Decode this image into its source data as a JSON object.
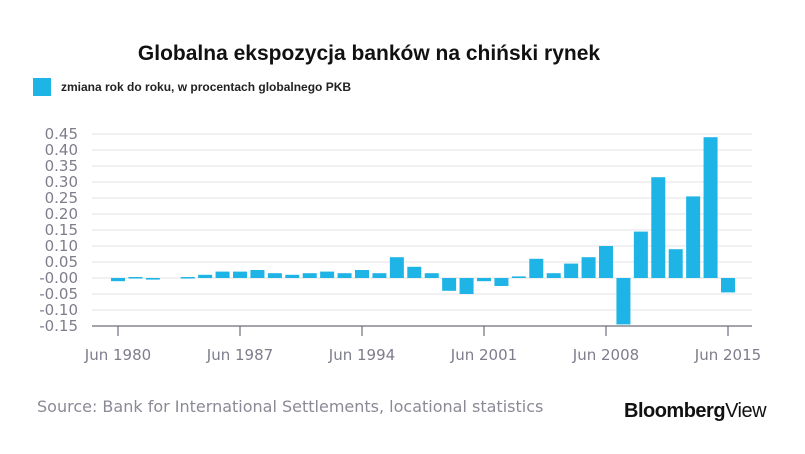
{
  "chart_data": {
    "type": "bar",
    "title": "Globalna ekspozycja banków na chiński rynek",
    "series": [
      {
        "name": "zmiana rok do roku, w procentach globalnego PKB",
        "color": "#1eb4e6"
      }
    ],
    "yticks": [
      "0.45",
      "0.40",
      "0.35",
      "0.30",
      "0.25",
      "0.20",
      "0.15",
      "0.10",
      "0.05",
      "-0.00",
      "-0.05",
      "-0.10",
      "-0.15"
    ],
    "ytick_values": [
      0.45,
      0.4,
      0.35,
      0.3,
      0.25,
      0.2,
      0.15,
      0.1,
      0.05,
      0.0,
      -0.05,
      -0.1,
      -0.15
    ],
    "ylim": [
      -0.15,
      0.45
    ],
    "xticks": [
      "Jun 1980",
      "Jun 1987",
      "Jun 1994",
      "Jun 2001",
      "Jun 2008",
      "Jun 2015"
    ],
    "xtick_years": [
      1980,
      1987,
      1994,
      2001,
      2008,
      2015
    ],
    "xlim": [
      1979.5,
      2015.5
    ],
    "points": [
      {
        "year": 1980,
        "value": -0.01
      },
      {
        "year": 1981,
        "value": 0.003
      },
      {
        "year": 1982,
        "value": -0.005
      },
      {
        "year": 1984,
        "value": 0.003
      },
      {
        "year": 1985,
        "value": 0.01
      },
      {
        "year": 1986,
        "value": 0.02
      },
      {
        "year": 1987,
        "value": 0.02
      },
      {
        "year": 1988,
        "value": 0.025
      },
      {
        "year": 1989,
        "value": 0.015
      },
      {
        "year": 1990,
        "value": 0.01
      },
      {
        "year": 1991,
        "value": 0.015
      },
      {
        "year": 1992,
        "value": 0.02
      },
      {
        "year": 1993,
        "value": 0.015
      },
      {
        "year": 1994,
        "value": 0.025
      },
      {
        "year": 1995,
        "value": 0.015
      },
      {
        "year": 1996,
        "value": 0.065
      },
      {
        "year": 1997,
        "value": 0.035
      },
      {
        "year": 1998,
        "value": 0.015
      },
      {
        "year": 1999,
        "value": -0.04
      },
      {
        "year": 2000,
        "value": -0.05
      },
      {
        "year": 2001,
        "value": -0.01
      },
      {
        "year": 2002,
        "value": -0.025
      },
      {
        "year": 2003,
        "value": 0.005
      },
      {
        "year": 2004,
        "value": 0.06
      },
      {
        "year": 2005,
        "value": 0.015
      },
      {
        "year": 2006,
        "value": 0.045
      },
      {
        "year": 2007,
        "value": 0.065
      },
      {
        "year": 2008,
        "value": 0.1
      },
      {
        "year": 2009,
        "value": -0.145
      },
      {
        "year": 2010,
        "value": 0.145
      },
      {
        "year": 2011,
        "value": 0.315
      },
      {
        "year": 2012,
        "value": 0.09
      },
      {
        "year": 2013,
        "value": 0.255
      },
      {
        "year": 2014,
        "value": 0.44
      },
      {
        "year": 2015,
        "value": -0.045
      }
    ],
    "grid": true,
    "legend_position": "top-left"
  },
  "source": "Source: Bank for International Settlements, locational statistics",
  "brand": {
    "bold": "Bloomberg",
    "light": "View"
  }
}
